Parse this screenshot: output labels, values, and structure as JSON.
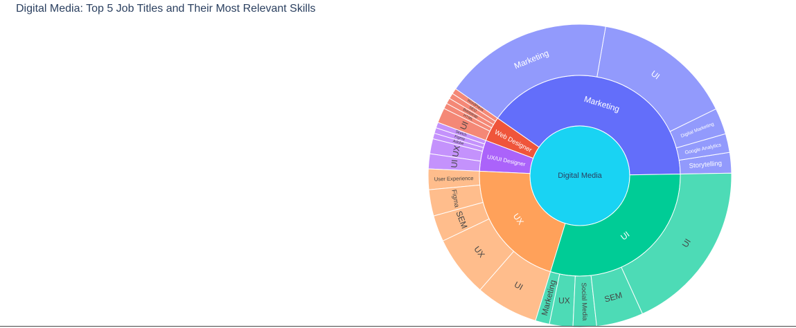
{
  "chart_data": {
    "type": "sunburst",
    "title": "Digital Media: Top 5 Job Titles and Their Most Relevant Skills",
    "root": "Digital Media",
    "children": [
      {
        "name": "Marketing",
        "value": 40,
        "color": "#636efa",
        "children": [
          {
            "name": "Storytelling",
            "value": 2.2
          },
          {
            "name": "Google Analytics",
            "value": 2.0
          },
          {
            "name": "Digital Marketing",
            "value": 2.8
          },
          {
            "name": "UI",
            "value": 15.0
          },
          {
            "name": "Marketing",
            "value": 18.0
          }
        ]
      },
      {
        "name": "Web Designer",
        "value": 4,
        "color": "#ef553b",
        "children": [
          {
            "name": "WordPress",
            "value": 0.6
          },
          {
            "name": "SEO",
            "value": 0.6
          },
          {
            "name": "Bootstrap",
            "value": 0.6
          },
          {
            "name": "HTML",
            "value": 0.6
          },
          {
            "name": "UI",
            "value": 1.6
          }
        ]
      },
      {
        "name": "UX/UI Designer",
        "value": 5,
        "color": "#ab63fa",
        "children": [
          {
            "name": "Sketch",
            "value": 0.6
          },
          {
            "name": "Figma",
            "value": 0.6
          },
          {
            "name": "Adobe",
            "value": 0.6
          },
          {
            "name": "UX",
            "value": 1.6
          },
          {
            "name": "UI",
            "value": 1.6
          }
        ]
      },
      {
        "name": "UX",
        "value": 21,
        "color": "#ffa15a",
        "children": [
          {
            "name": "User Experience",
            "value": 2.2
          },
          {
            "name": "Figma",
            "value": 2.8
          },
          {
            "name": "SEM",
            "value": 2.8
          },
          {
            "name": "UX",
            "value": 6.5
          },
          {
            "name": "UI",
            "value": 6.7
          }
        ]
      },
      {
        "name": "UI",
        "value": 30,
        "color": "#00cc96",
        "children": [
          {
            "name": "Marketing",
            "value": 1.5
          },
          {
            "name": "UX",
            "value": 2.5
          },
          {
            "name": "Social Media",
            "value": 2.5
          },
          {
            "name": "SEM",
            "value": 5.0
          },
          {
            "name": "UI",
            "value": 18.5
          }
        ]
      }
    ]
  },
  "colors": {
    "root": "#19d3f3",
    "title": "#2a3f5f"
  }
}
